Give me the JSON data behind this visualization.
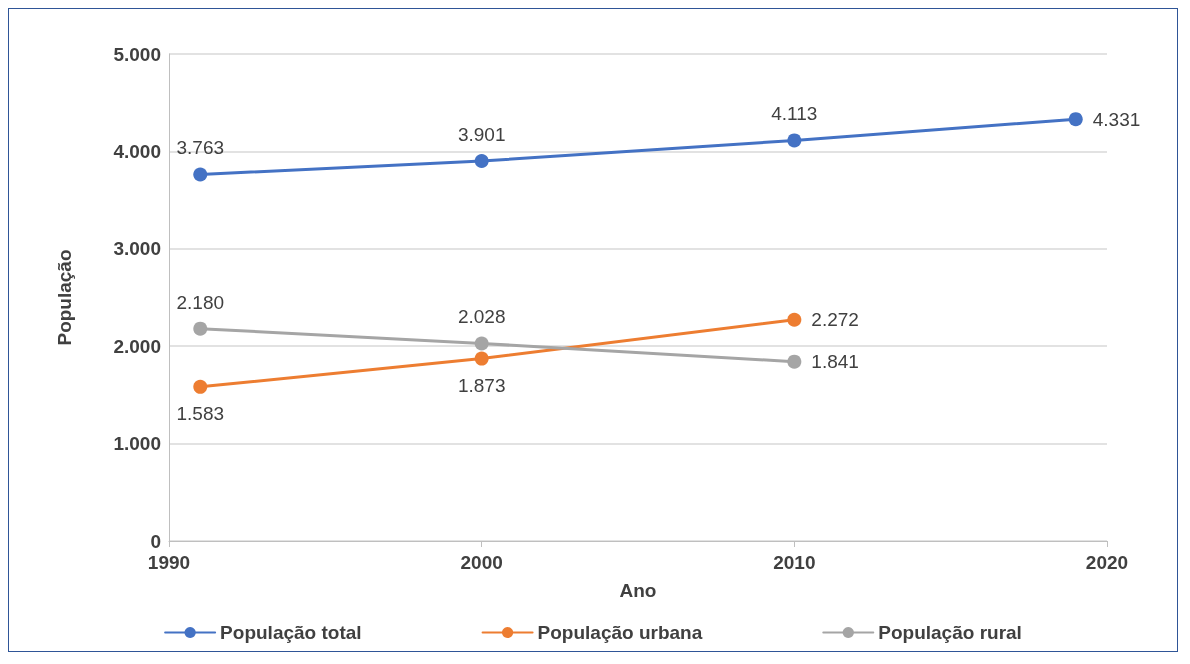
{
  "chart_data": {
    "type": "line",
    "xlabel": "Ano",
    "ylabel": "População",
    "x": [
      1991,
      2000,
      2010,
      2019
    ],
    "series": [
      {
        "name": "População total",
        "color": "#4472c4",
        "values": [
          3763,
          3901,
          4113,
          4331
        ],
        "value_labels": [
          "3.763",
          "3.901",
          "4.113",
          "4.331"
        ]
      },
      {
        "name": "População urbana",
        "color": "#ed7d31",
        "values": [
          1583,
          1873,
          2272,
          null
        ],
        "value_labels": [
          "1.583",
          "1.873",
          "2.272",
          null
        ]
      },
      {
        "name": "População rural",
        "color": "#a5a5a5",
        "values": [
          2180,
          2028,
          1841,
          null
        ],
        "value_labels": [
          "2.180",
          "2.028",
          "1.841",
          null
        ]
      }
    ],
    "xlim": [
      1990,
      2020
    ],
    "xticks": [
      1990,
      2000,
      2010,
      2020
    ],
    "ylim": [
      0,
      5000
    ],
    "yticks": [
      {
        "value": 0,
        "label": "0"
      },
      {
        "value": 1000,
        "label": "1.000"
      },
      {
        "value": 2000,
        "label": "2.000"
      },
      {
        "value": 3000,
        "label": "3.000"
      },
      {
        "value": 4000,
        "label": "4.000"
      },
      {
        "value": 5000,
        "label": "5.000"
      }
    ],
    "grid": "y",
    "legend": "bottom",
    "marker": "circle",
    "line_style": "solid"
  }
}
